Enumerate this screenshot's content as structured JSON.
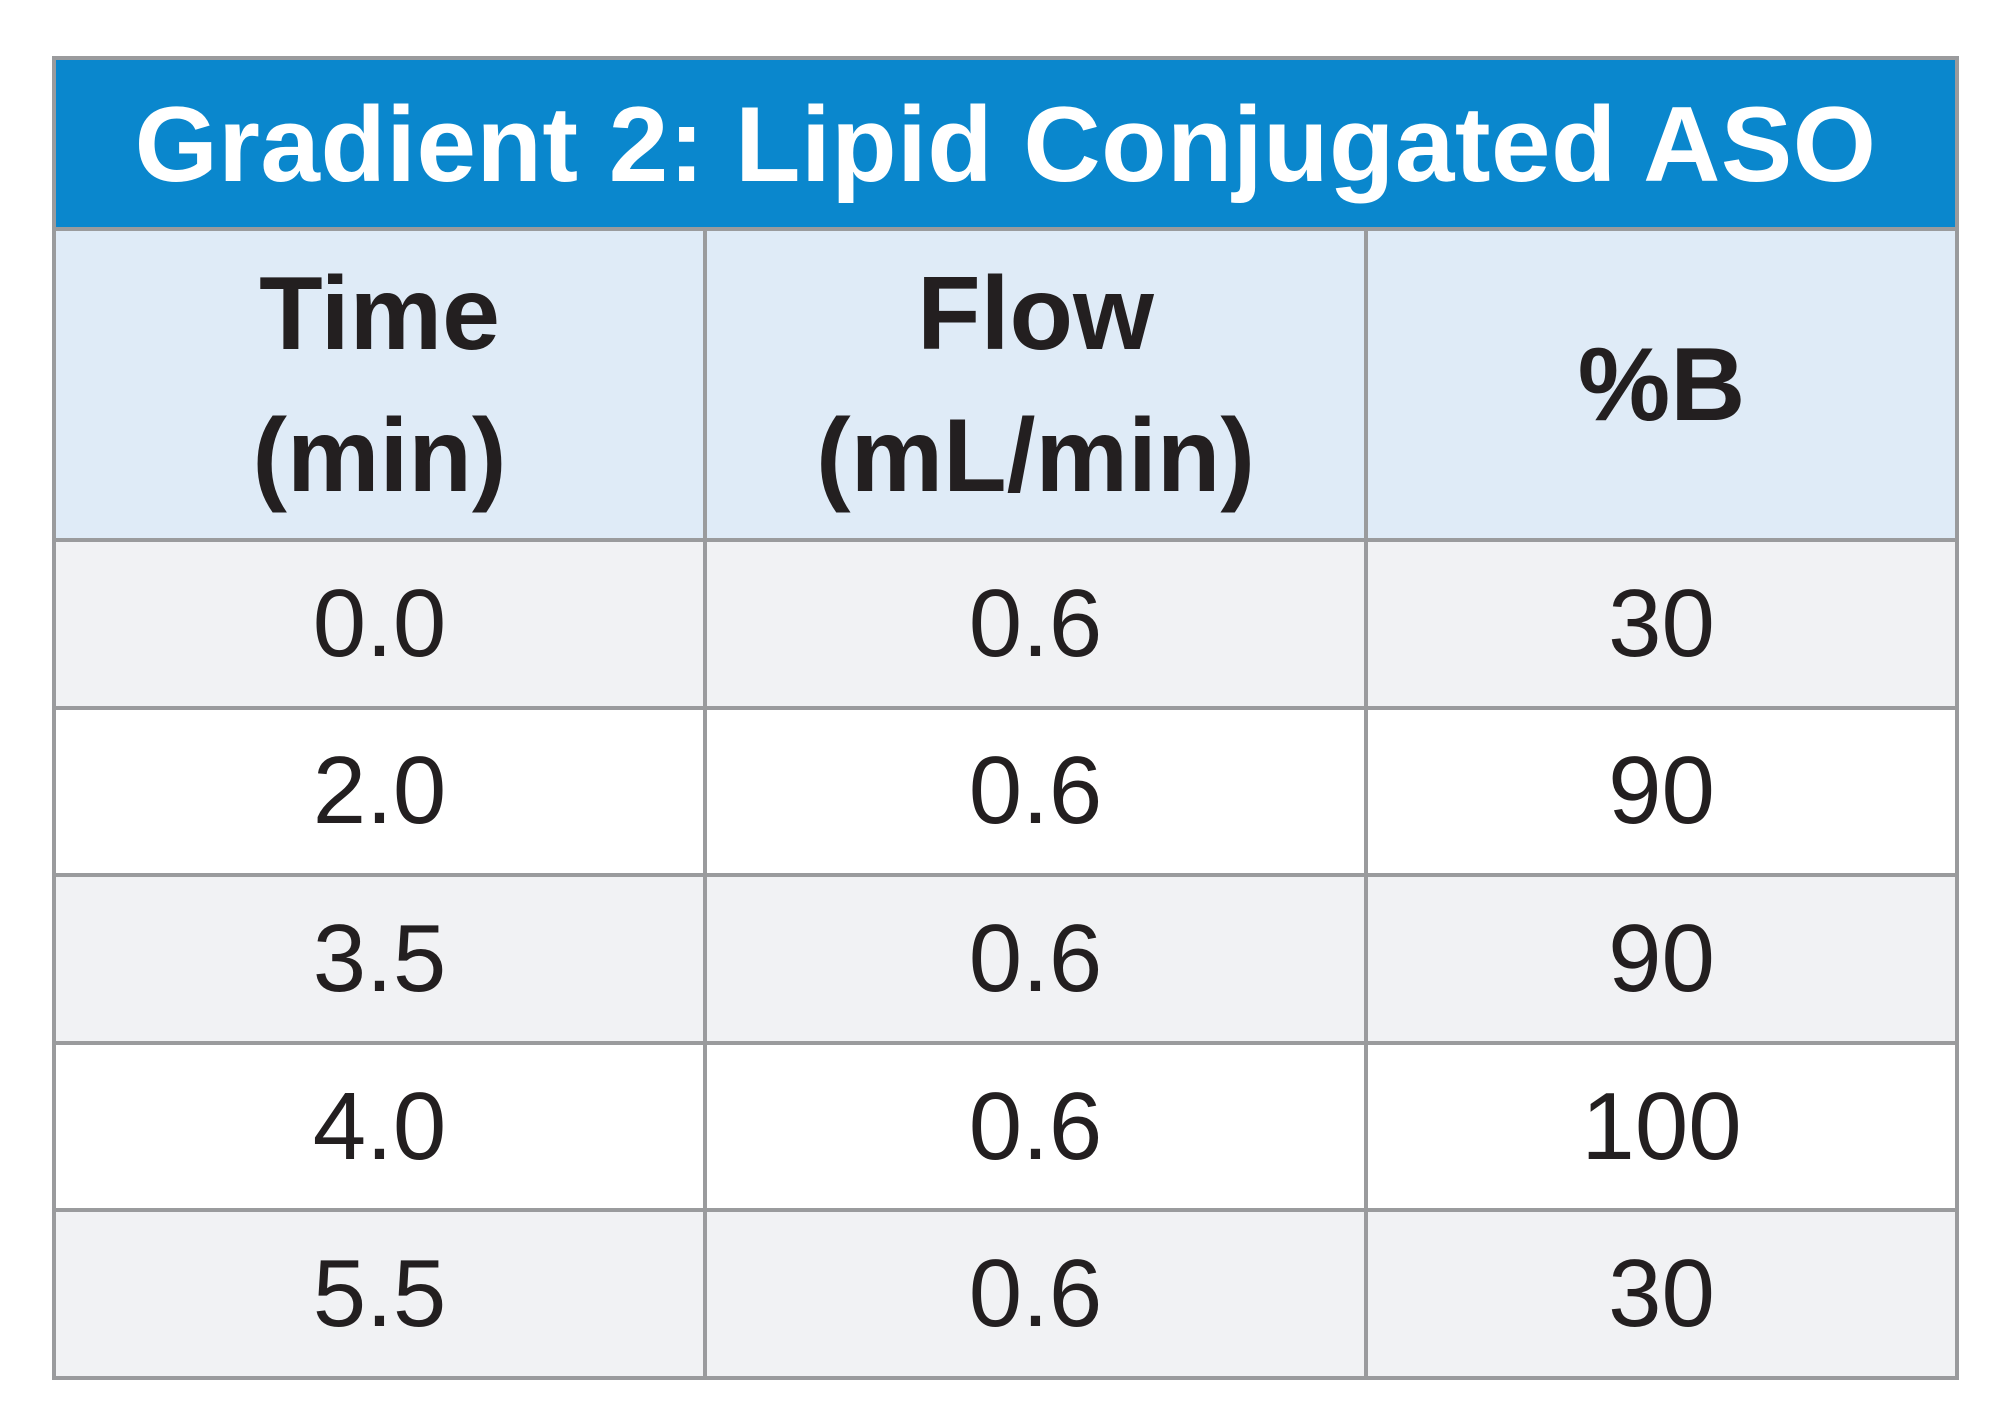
{
  "title": "Gradient 2: Lipid Conjugated ASO",
  "headers": {
    "time": [
      "Time",
      "(min)"
    ],
    "flow": [
      "Flow",
      "(mL/min)"
    ],
    "percent_b": [
      "%B"
    ]
  },
  "rows": [
    [
      "0.0",
      "0.6",
      "30"
    ],
    [
      "2.0",
      "0.6",
      "90"
    ],
    [
      "3.5",
      "0.6",
      "90"
    ],
    [
      "4.0",
      "0.6",
      "100"
    ],
    [
      "5.5",
      "0.6",
      "30"
    ]
  ],
  "colors": {
    "title_background": "#0a87cd",
    "header_background": "#dfebf7",
    "odd_row_background": "#f1f2f4",
    "even_row_background": "#ffffff",
    "border": "#9a9b9d",
    "text": "#231f20"
  }
}
